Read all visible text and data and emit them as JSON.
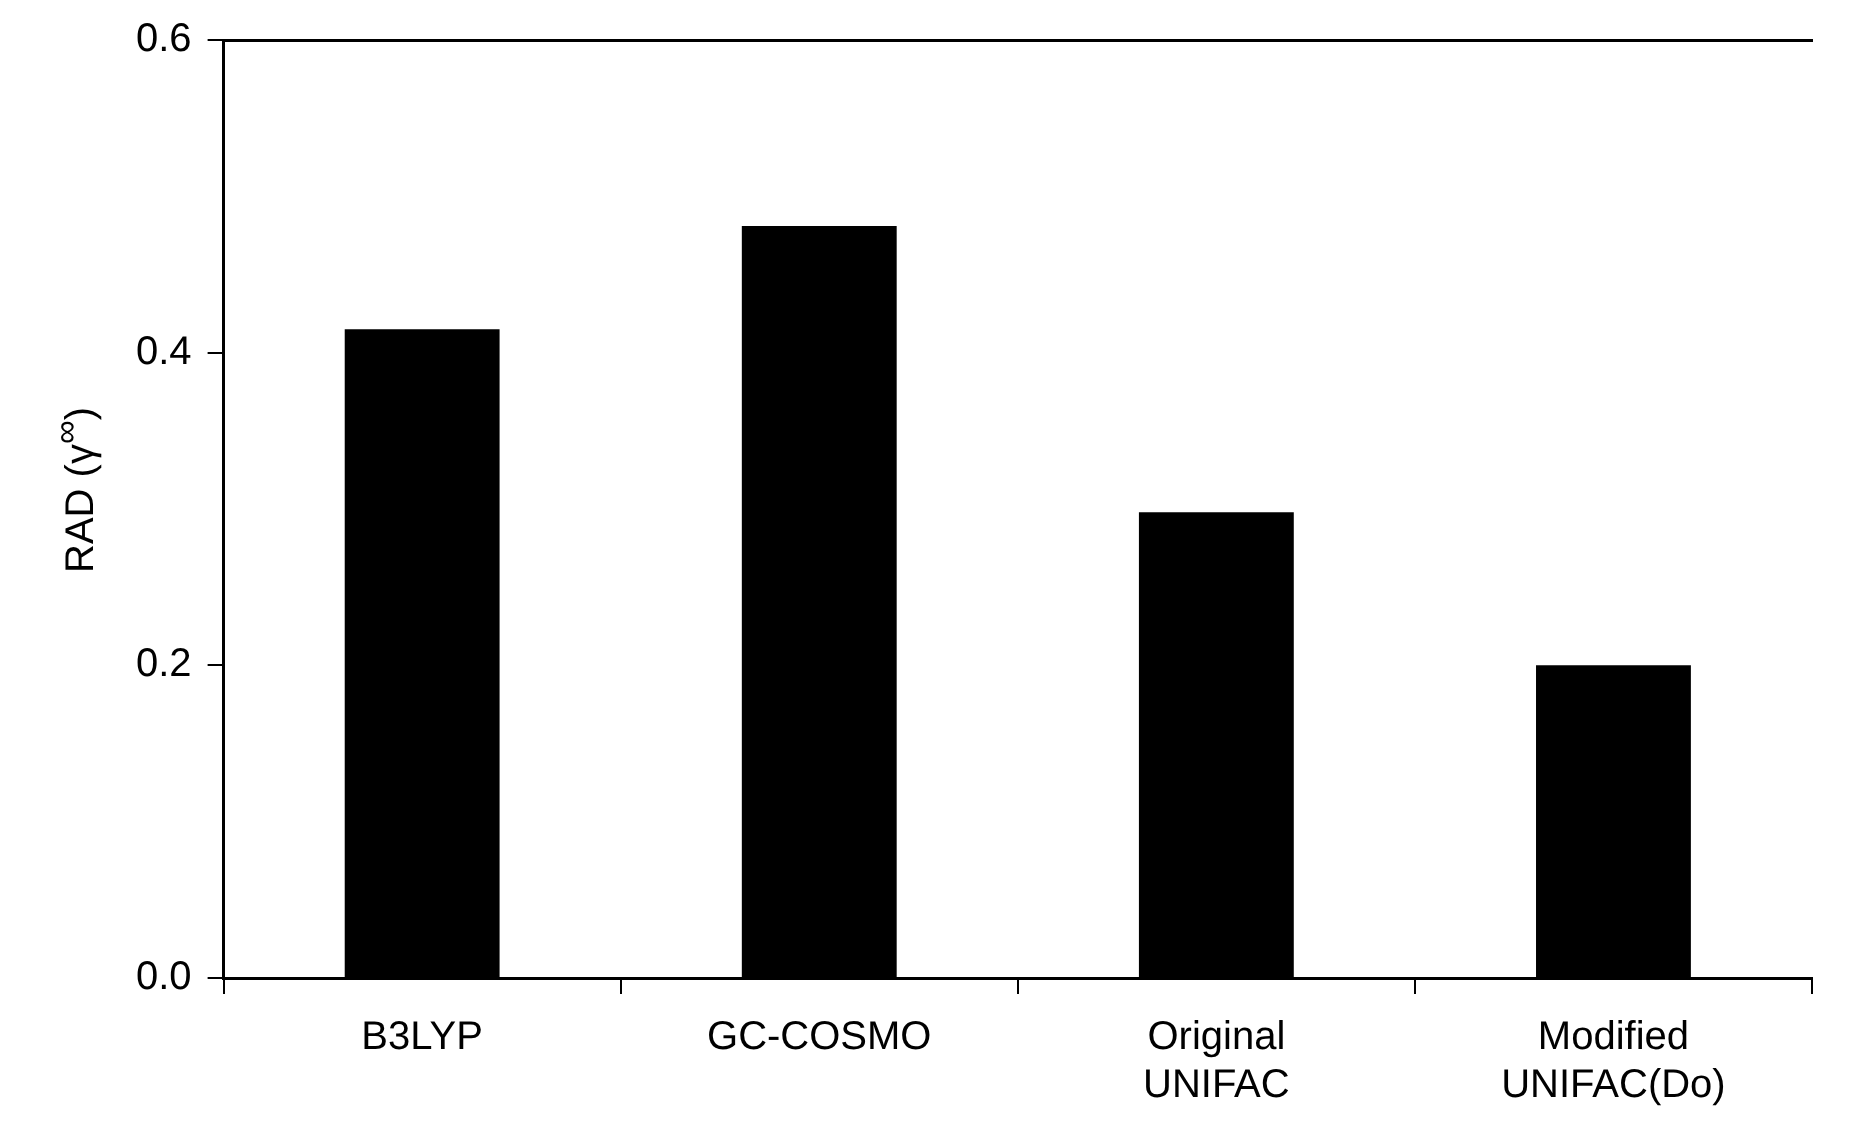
{
  "chart_data": {
    "type": "bar",
    "ylabel": "RAD (γ$^{∞}$)",
    "categories": [
      "B3LYP",
      "GC-COSMO",
      "Original UNIFAC",
      "Modified UNIFAC(Do)"
    ],
    "values": [
      0.415,
      0.481,
      0.298,
      0.2
    ],
    "color": "#000000",
    "ylim": [
      0,
      0.6
    ],
    "yticks": [
      {
        "value": 0,
        "label": "0.0"
      },
      {
        "value": 0.2,
        "label": "0.2"
      },
      {
        "value": 0.4,
        "label": "0.4"
      },
      {
        "value": 0.6,
        "label": "0.6"
      }
    ],
    "grid": false,
    "legend": false
  }
}
